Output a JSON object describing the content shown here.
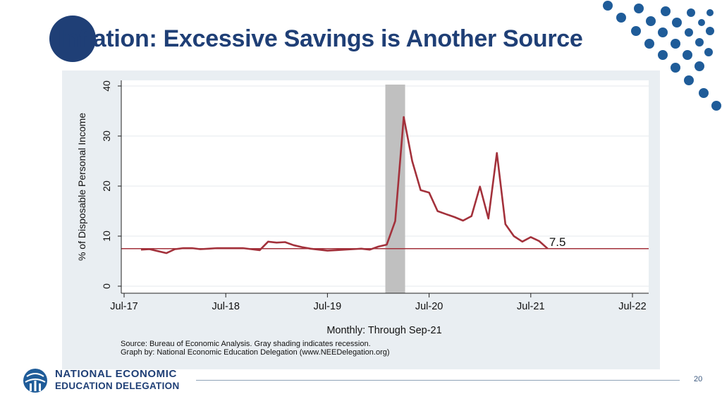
{
  "slide": {
    "title": "Inflation: Excessive Savings is Another Source",
    "page_number": "20",
    "org_line1": "NATIONAL ECONOMIC",
    "org_line2": "EDUCATION DELEGATION"
  },
  "colors": {
    "brand_navy": "#1f3f76",
    "dot_blue": "#1f5c99",
    "series_line": "#a3313b",
    "reference_line": "#a3313b",
    "recession_shade": "#c0c0c0"
  },
  "chart_data": {
    "type": "line",
    "ylabel": "% of Disposable Personal Income",
    "xlabel": "Monthly: Through Sep-21",
    "x_ticks": [
      "Jul-17",
      "Jul-18",
      "Jul-19",
      "Jul-20",
      "Jul-21",
      "Jul-22"
    ],
    "y_ticks": [
      0,
      10,
      20,
      30,
      40
    ],
    "ylim": [
      0,
      40
    ],
    "xlim": [
      "2017-07",
      "2022-07"
    ],
    "grid": "horizontal",
    "source_note": "Source: Bureau of Economic Analysis. Gray shading indicates recession.",
    "credit_note": "Graph by: National Economic Education Delegation (www.NEEDelegation.org)",
    "annotation": "7.5",
    "reference_line_value": 7.5,
    "recession": {
      "start": "2020-02",
      "end": "2020-04"
    },
    "series": [
      {
        "x": [
          "2017-09",
          "2017-10",
          "2017-11",
          "2017-12",
          "2018-01",
          "2018-02",
          "2018-03",
          "2018-04",
          "2018-05",
          "2018-06",
          "2018-07",
          "2018-08",
          "2018-09",
          "2018-10",
          "2018-11",
          "2018-12",
          "2019-01",
          "2019-02",
          "2019-03",
          "2019-04",
          "2019-05",
          "2019-06",
          "2019-07",
          "2019-08",
          "2019-09",
          "2019-10",
          "2019-11",
          "2019-12",
          "2020-01",
          "2020-02",
          "2020-03",
          "2020-04",
          "2020-05",
          "2020-06",
          "2020-07",
          "2020-08",
          "2020-09",
          "2020-10",
          "2020-11",
          "2020-12",
          "2021-01",
          "2021-02",
          "2021-03",
          "2021-04",
          "2021-05",
          "2021-06",
          "2021-07",
          "2021-08",
          "2021-09"
        ],
        "values": [
          7.3,
          7.4,
          7.0,
          6.6,
          7.4,
          7.6,
          7.6,
          7.4,
          7.5,
          7.6,
          7.6,
          7.6,
          7.6,
          7.4,
          7.2,
          8.9,
          8.7,
          8.8,
          8.2,
          7.8,
          7.5,
          7.3,
          7.1,
          7.2,
          7.3,
          7.4,
          7.5,
          7.3,
          7.9,
          8.3,
          13.0,
          33.8,
          25.0,
          19.2,
          18.7,
          15.0,
          14.4,
          13.8,
          13.1,
          14.0,
          19.9,
          13.5,
          26.6,
          12.4,
          10.0,
          8.9,
          9.8,
          9.0,
          7.5
        ]
      }
    ]
  }
}
